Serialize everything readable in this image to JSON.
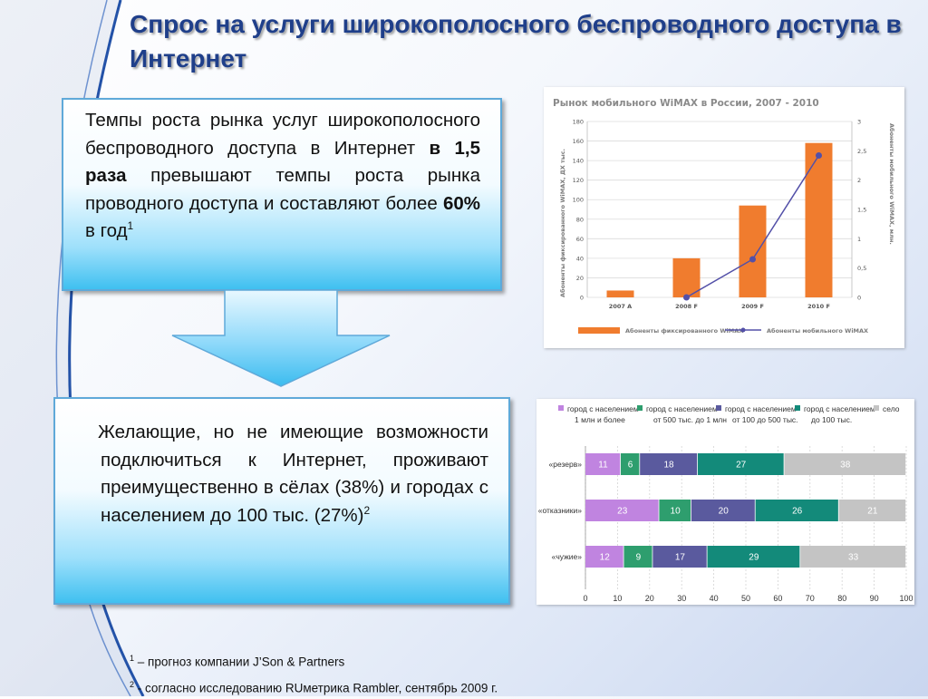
{
  "slide": {
    "title": "Спрос на услуги широкополосного беспроводного доступа в Интернет",
    "box1": {
      "text_before": "Темпы роста рынка услуг широкополосного беспроводного доступа в Интернет ",
      "bold1": "в 1,5 раза",
      "text_middle": " превышают темпы роста рынка проводного доступа и составляют более ",
      "bold2": "60%",
      "text_after": " в год",
      "footnote_ref": "1"
    },
    "box2": {
      "text": "Желающие, но не имеющие возможности подключиться к Интернет, проживают преимущественно в сёлах (38%) и городах с населением до 100 тыс. (27%)",
      "footnote_ref": "2"
    },
    "footnotes": [
      {
        "ref": "1",
        "text": " – прогноз компании J’Son & Partners"
      },
      {
        "ref": "2",
        "text": "  - согласно исследованию RUметрика Rambler, сентябрь 2009 г."
      }
    ]
  },
  "colors": {
    "title": "#1f3f8a",
    "bar_orange": "#f07c2e",
    "line_purple": "#5350a8",
    "seg_colors": [
      "#c084e0",
      "#2e9e6e",
      "#5a5a9e",
      "#138a7a",
      "#c4c4c4"
    ]
  },
  "chart_data": [
    {
      "type": "bar",
      "title": "Рынок мобильного WiMAX в России, 2007 - 2010",
      "ylabel": "Абоненты фиксированного WiMAX, ДХ тыс.",
      "y2label": "Абоненты мобильного WiMAX, млн.",
      "categories": [
        "2007 A",
        "2008 F",
        "2009 F",
        "2010 F"
      ],
      "ylim": [
        0,
        180
      ],
      "yticks": [
        0,
        20,
        40,
        60,
        80,
        100,
        120,
        140,
        160,
        180
      ],
      "y2lim": [
        0,
        3
      ],
      "y2ticks": [
        "0",
        "0,5",
        "1",
        "1,5",
        "2",
        "2,5",
        "3"
      ],
      "grid": true,
      "series": [
        {
          "name": "Абоненты фиксированного WiMAX",
          "type": "bar",
          "axis": "left",
          "values": [
            7,
            40,
            94,
            158
          ]
        },
        {
          "name": "Абоненты мобильного WiMAX",
          "type": "line",
          "axis": "right",
          "values": [
            null,
            0,
            0.65,
            2.42
          ]
        }
      ],
      "legend": "bottom"
    },
    {
      "type": "bar",
      "orientation": "horizontal",
      "stacked": true,
      "categories": [
        "«резерв»",
        "«отказники»",
        "«чужие»"
      ],
      "xlim": [
        0,
        100
      ],
      "xticks": [
        0,
        10,
        20,
        30,
        40,
        50,
        60,
        70,
        80,
        90,
        100
      ],
      "series": [
        {
          "name_lines": [
            "город с населением",
            "1 млн и более"
          ],
          "values": [
            11,
            23,
            12
          ]
        },
        {
          "name_lines": [
            "город с населением",
            "от 500 тыс. до 1 млн"
          ],
          "values": [
            6,
            10,
            9
          ]
        },
        {
          "name_lines": [
            "город с населением",
            "от 100 до 500 тыс."
          ],
          "values": [
            18,
            20,
            17
          ]
        },
        {
          "name_lines": [
            "город с населением",
            "до 100 тыс."
          ],
          "values": [
            27,
            26,
            29
          ]
        },
        {
          "name_lines": [
            "село"
          ],
          "values": [
            38,
            21,
            33
          ]
        }
      ],
      "legend": "top"
    }
  ]
}
